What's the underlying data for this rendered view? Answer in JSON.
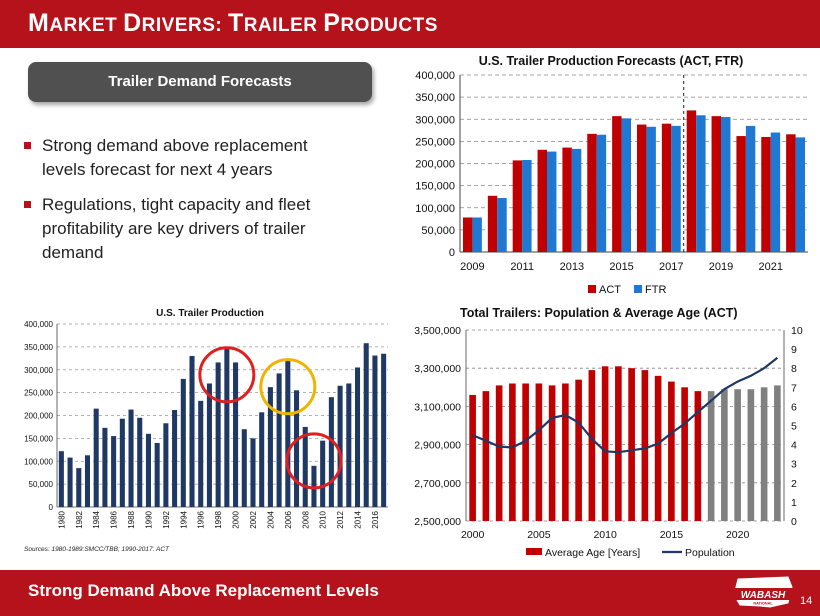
{
  "header": {
    "title_parts": [
      [
        "M",
        "ARKET "
      ],
      [
        "D",
        "RIVERS: "
      ],
      [
        "T",
        "RAILER "
      ],
      [
        "P",
        "RODUCTS"
      ]
    ]
  },
  "pill": {
    "label": "Trailer Demand Forecasts"
  },
  "bullets": [
    "Strong demand above replacement levels forecast for next 4 years",
    "Regulations, tight capacity and fleet profitability are key drivers of trailer demand"
  ],
  "footer": {
    "tagline": "Strong Demand Above Replacement Levels",
    "page": "14",
    "logo_text": "WABASH",
    "logo_sub": "NATIONAL"
  },
  "colors": {
    "brand_red": "#b5121b",
    "act": "#c00000",
    "ftr": "#1f78d2",
    "production_bar": "#1f3864",
    "forecast_bar": "#808080",
    "population_line": "#1f3864",
    "circle_red": "#e02020",
    "circle_yellow": "#f0b400"
  },
  "chart_data": [
    {
      "type": "bar",
      "title": "U.S. Trailer Production Forecasts (ACT, FTR)",
      "categories": [
        "2009",
        "2010",
        "2011",
        "2012",
        "2013",
        "2014",
        "2015",
        "2016",
        "2017",
        "2018",
        "2019",
        "2020",
        "2021",
        "2022"
      ],
      "x_tick_labels": [
        "2009",
        "2011",
        "2013",
        "2015",
        "2017",
        "2019",
        "2021"
      ],
      "y_tick_labels": [
        "0",
        "50,000",
        "100,000",
        "150,000",
        "200,000",
        "250,000",
        "300,000",
        "350,000",
        "400,000"
      ],
      "ylim": [
        0,
        400000
      ],
      "series": [
        {
          "name": "ACT",
          "values": [
            78000,
            127000,
            207000,
            231000,
            236000,
            267000,
            307000,
            288000,
            290000,
            320000,
            307000,
            262000,
            260000,
            266000
          ]
        },
        {
          "name": "FTR",
          "values": [
            78000,
            122000,
            208000,
            227000,
            233000,
            265000,
            302000,
            283000,
            285000,
            309000,
            305000,
            285000,
            270000,
            259000
          ]
        }
      ],
      "legend_position": "bottom",
      "grid": true,
      "divider_after_category": "2017"
    },
    {
      "type": "bar",
      "title": "U.S. Trailer Production",
      "categories": [
        "1980",
        "1981",
        "1982",
        "1983",
        "1984",
        "1985",
        "1986",
        "1987",
        "1988",
        "1989",
        "1990",
        "1991",
        "1992",
        "1993",
        "1994",
        "1995",
        "1996",
        "1997",
        "1998",
        "1999",
        "2000",
        "2001",
        "2002",
        "2003",
        "2004",
        "2005",
        "2006",
        "2007",
        "2008",
        "2009",
        "2010",
        "2011",
        "2012",
        "2013",
        "2014",
        "2015",
        "2016",
        "2017"
      ],
      "x_tick_labels": [
        "1980",
        "1982",
        "1984",
        "1986",
        "1988",
        "1990",
        "1992",
        "1994",
        "1996",
        "1998",
        "2000",
        "2002",
        "2004",
        "2006",
        "2008",
        "2010",
        "2012",
        "2014",
        "2016"
      ],
      "y_tick_labels": [
        "0",
        "50,000",
        "100,000",
        "150,000",
        "200,000",
        "250,000",
        "300,000",
        "350,000",
        "400,000"
      ],
      "values": [
        122000,
        108000,
        85000,
        113000,
        215000,
        173000,
        155000,
        193000,
        213000,
        195000,
        160000,
        140000,
        183000,
        212000,
        280000,
        330000,
        232000,
        270000,
        316000,
        348000,
        316000,
        170000,
        150000,
        207000,
        262000,
        292000,
        322000,
        255000,
        175000,
        90000,
        145000,
        240000,
        265000,
        270000,
        305000,
        358000,
        331000,
        335000
      ],
      "ylim": [
        0,
        400000
      ],
      "grid": true,
      "source_note": "Sources: 1980-1989:SMCC/TBB;  1990-2017: ACT",
      "highlighted_years": [
        {
          "year": "1999",
          "color": "red"
        },
        {
          "year": "2006",
          "color": "yellow"
        },
        {
          "year": "2009",
          "color": "red"
        }
      ]
    },
    {
      "type": "bar",
      "title": "Total Trailers: Population & Average Age (ACT)",
      "categories": [
        "2000",
        "2001",
        "2002",
        "2003",
        "2004",
        "2005",
        "2006",
        "2007",
        "2008",
        "2009",
        "2010",
        "2011",
        "2012",
        "2013",
        "2014",
        "2015",
        "2016",
        "2017",
        "2018",
        "2019",
        "2020",
        "2021",
        "2022",
        "2023"
      ],
      "x_tick_labels": [
        "2000",
        "2005",
        "2010",
        "2015",
        "2020"
      ],
      "left_tick_labels": [
        "2,500,000",
        "2,700,000",
        "2,900,000",
        "3,100,000",
        "3,300,000",
        "3,500,000"
      ],
      "right_tick_labels": [
        "0",
        "1",
        "2",
        "3",
        "4",
        "5",
        "6",
        "7",
        "8",
        "9",
        "10"
      ],
      "left_ylim": [
        2500000,
        3500000
      ],
      "right_ylim": [
        0,
        10
      ],
      "series": [
        {
          "name": "Average Age [Years]",
          "axis": "right",
          "values": [
            6.6,
            6.8,
            7.1,
            7.2,
            7.2,
            7.2,
            7.1,
            7.2,
            7.4,
            7.9,
            8.1,
            8.1,
            8.0,
            7.9,
            7.6,
            7.3,
            7.0,
            6.8,
            6.8,
            6.9,
            6.9,
            6.9,
            7.0,
            7.1
          ],
          "forecast_from": "2018"
        },
        {
          "name": "Population",
          "axis": "left",
          "values": [
            2950000,
            2920000,
            2890000,
            2885000,
            2920000,
            2975000,
            3040000,
            3055000,
            3015000,
            2930000,
            2865000,
            2860000,
            2870000,
            2880000,
            2905000,
            2960000,
            3010000,
            3070000,
            3130000,
            3190000,
            3230000,
            3260000,
            3300000,
            3355000
          ]
        }
      ],
      "legend_position": "bottom",
      "grid": true
    }
  ]
}
